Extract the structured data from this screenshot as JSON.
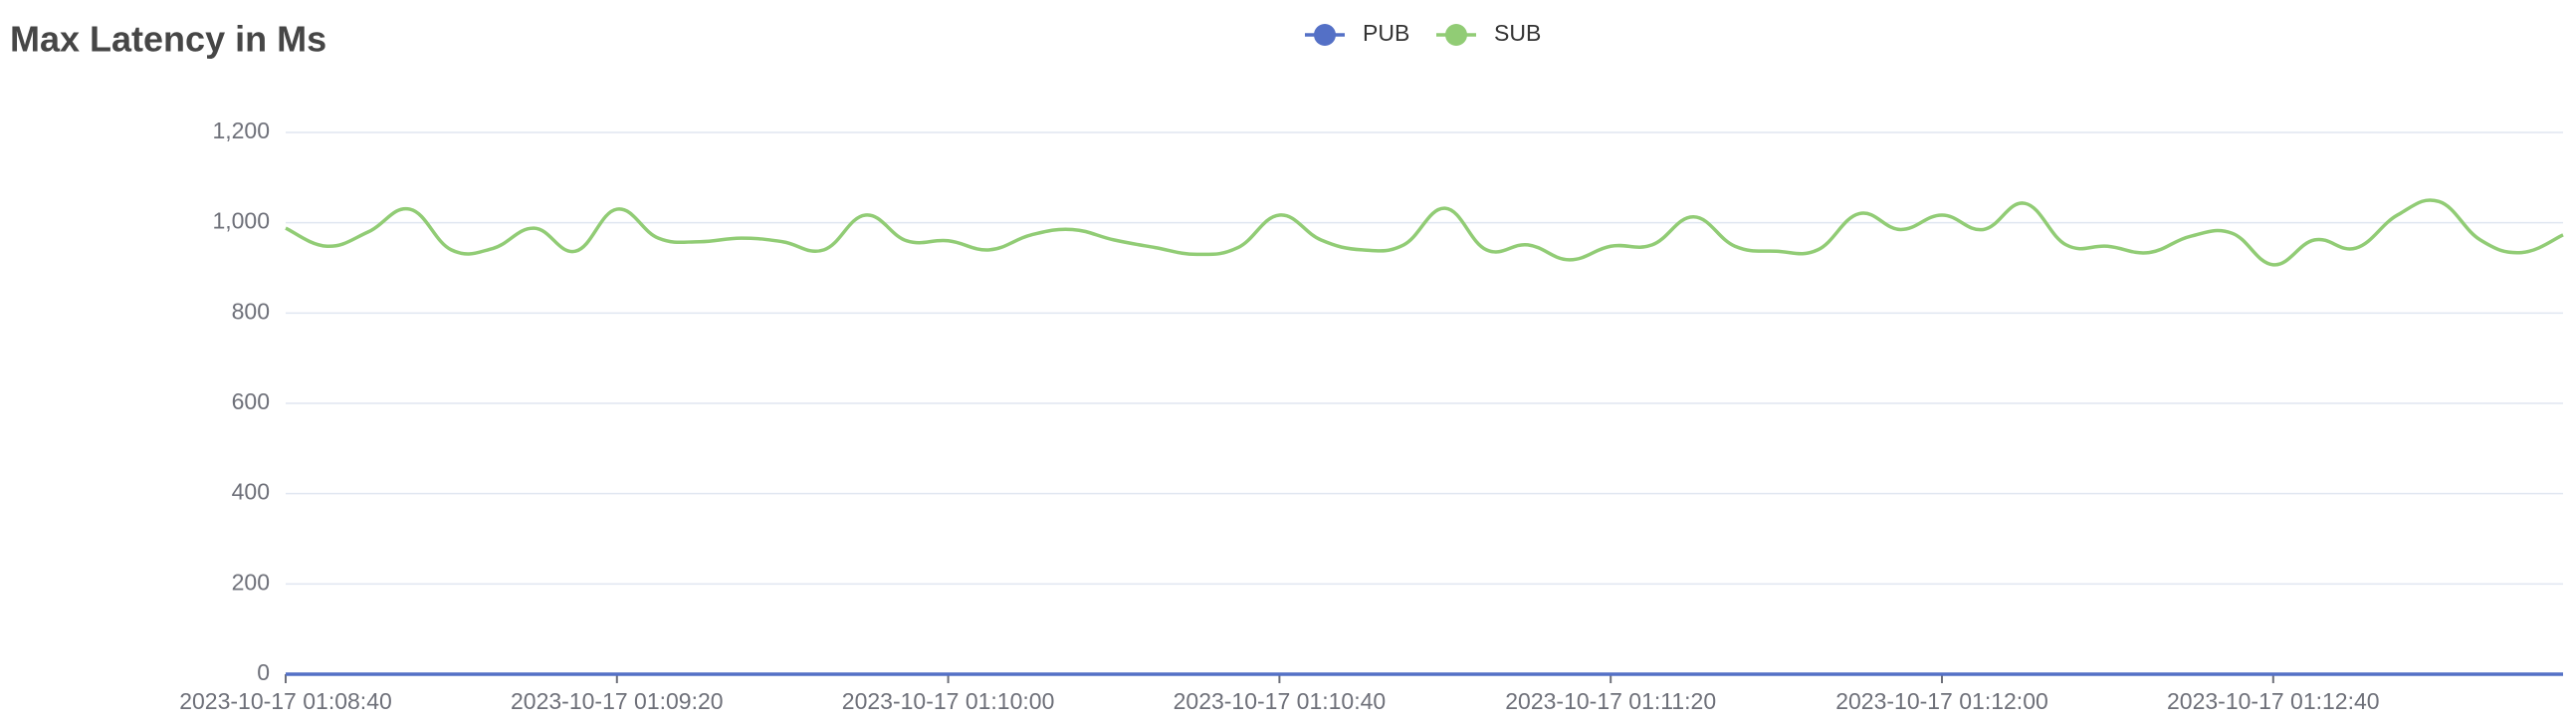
{
  "chart_data": {
    "type": "line",
    "title": "Max Latency in Ms",
    "x": [
      "2023-10-17 01:08:40",
      "2023-10-17 01:08:45",
      "2023-10-17 01:08:50",
      "2023-10-17 01:08:55",
      "2023-10-17 01:09:00",
      "2023-10-17 01:09:05",
      "2023-10-17 01:09:10",
      "2023-10-17 01:09:15",
      "2023-10-17 01:09:20",
      "2023-10-17 01:09:25",
      "2023-10-17 01:09:30",
      "2023-10-17 01:09:35",
      "2023-10-17 01:09:40",
      "2023-10-17 01:09:45",
      "2023-10-17 01:09:50",
      "2023-10-17 01:09:55",
      "2023-10-17 01:10:00",
      "2023-10-17 01:10:05",
      "2023-10-17 01:10:10",
      "2023-10-17 01:10:15",
      "2023-10-17 01:10:20",
      "2023-10-17 01:10:25",
      "2023-10-17 01:10:30",
      "2023-10-17 01:10:35",
      "2023-10-17 01:10:40",
      "2023-10-17 01:10:45",
      "2023-10-17 01:10:50",
      "2023-10-17 01:10:55",
      "2023-10-17 01:11:00",
      "2023-10-17 01:11:05",
      "2023-10-17 01:11:10",
      "2023-10-17 01:11:15",
      "2023-10-17 01:11:20",
      "2023-10-17 01:11:25",
      "2023-10-17 01:11:30",
      "2023-10-17 01:11:35",
      "2023-10-17 01:11:40",
      "2023-10-17 01:11:45",
      "2023-10-17 01:11:50",
      "2023-10-17 01:11:55",
      "2023-10-17 01:12:00",
      "2023-10-17 01:12:05",
      "2023-10-17 01:12:10",
      "2023-10-17 01:12:15",
      "2023-10-17 01:12:20",
      "2023-10-17 01:12:25",
      "2023-10-17 01:12:30",
      "2023-10-17 01:12:35",
      "2023-10-17 01:12:40",
      "2023-10-17 01:12:45",
      "2023-10-17 01:12:50",
      "2023-10-17 01:12:55",
      "2023-10-17 01:13:00",
      "2023-10-17 01:13:05",
      "2023-10-17 01:13:10",
      "2023-10-17 01:13:15"
    ],
    "series": [
      {
        "name": "PUB",
        "color": "#5470c6",
        "values": [
          0,
          0,
          0,
          0,
          0,
          0,
          0,
          0,
          0,
          0,
          0,
          0,
          0,
          0,
          0,
          0,
          0,
          0,
          0,
          0,
          0,
          0,
          0,
          0,
          0,
          0,
          0,
          0,
          0,
          0,
          0,
          0,
          0,
          0,
          0,
          0,
          0,
          0,
          0,
          0,
          0,
          0,
          0,
          0,
          0,
          0,
          0,
          0,
          0,
          0,
          0,
          0,
          0,
          0,
          0,
          0
        ]
      },
      {
        "name": "SUB",
        "color": "#91cc75",
        "values": [
          988,
          948,
          980,
          1030,
          940,
          943,
          988,
          937,
          1030,
          966,
          958,
          966,
          958,
          940,
          1017,
          960,
          960,
          940,
          973,
          985,
          962,
          945,
          930,
          945,
          1017,
          962,
          940,
          951,
          1032,
          940,
          951,
          918,
          948,
          951,
          1013,
          948,
          937,
          940,
          1020,
          985,
          1017,
          985,
          1043,
          951,
          948,
          934,
          970,
          977,
          907,
          962,
          944,
          1017,
          1047,
          962,
          934,
          973
        ]
      }
    ],
    "xlim": [
      "2023-10-17 01:08:40",
      "2023-10-17 01:13:15"
    ],
    "xticks": [
      "2023-10-17 01:08:40",
      "2023-10-17 01:09:20",
      "2023-10-17 01:10:00",
      "2023-10-17 01:10:40",
      "2023-10-17 01:11:20",
      "2023-10-17 01:12:00",
      "2023-10-17 01:12:40"
    ],
    "ylim": [
      0,
      1200
    ],
    "yticks": [
      0,
      200,
      400,
      600,
      800,
      {
        "value": 1000,
        "label": "1,000"
      },
      {
        "value": 1200,
        "label": "1,200"
      }
    ],
    "grid": true,
    "legend": "top"
  }
}
